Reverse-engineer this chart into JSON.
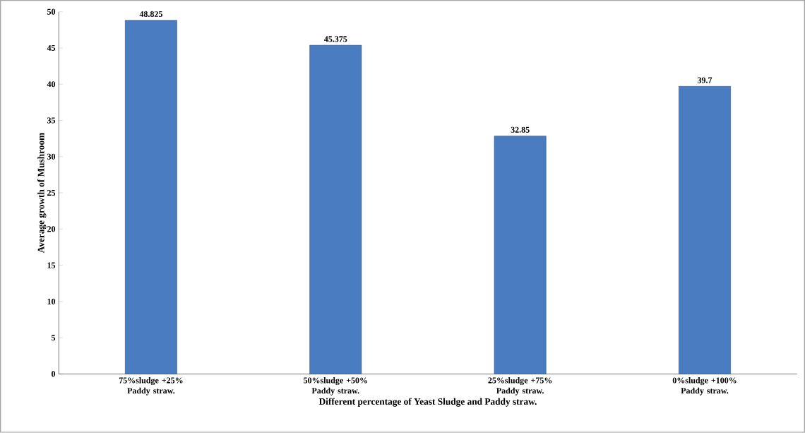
{
  "chart_data": {
    "type": "bar",
    "xlabel": "Different percentage of Yeast Sludge and Paddy straw.",
    "ylabel": "Average growth of Mushroom",
    "categories": [
      "75%sludge +25% Paddy straw.",
      "50%sludge +50% Paddy straw.",
      "25%sludge +75% Paddy straw.",
      "0%sludge +100% Paddy straw."
    ],
    "values": [
      48.825,
      45.375,
      32.85,
      39.7
    ],
    "color": "#4a7cc2",
    "ylim": [
      0,
      50
    ],
    "yticks": [
      0,
      5,
      10,
      15,
      20,
      25,
      30,
      35,
      40,
      45,
      50
    ],
    "data_labels": true,
    "grid": false
  }
}
